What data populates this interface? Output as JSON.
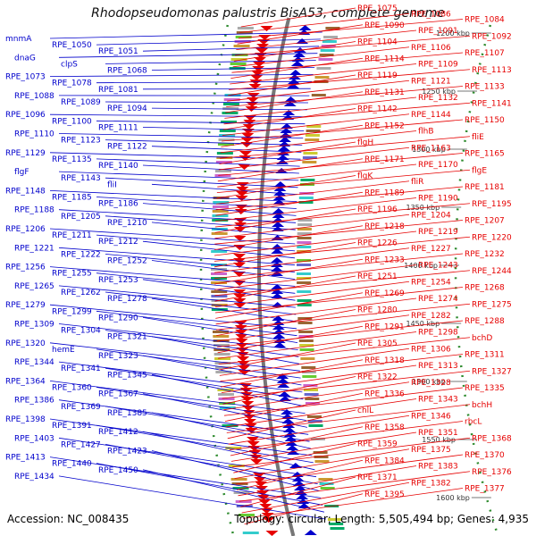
{
  "title": "Rhodopseudomonas palustris BisA53, complete genome",
  "footer": {
    "accession": "Accession: NC_008435",
    "topology": "Topology: circular; Length: 5,505,494 bp; Genes: 4,935"
  },
  "colors": {
    "forward": "#0000cc",
    "reverse": "#e60000",
    "backbone": "#777777",
    "tick": "#2e8b2e"
  },
  "scale_marks": [
    {
      "label": "1200 kbp"
    },
    {
      "label": "1250 kbp"
    },
    {
      "label": "1300 kbp"
    },
    {
      "label": "1350 kbp"
    },
    {
      "label": "1400 kbp"
    },
    {
      "label": "1450 kbp"
    },
    {
      "label": "1500 kbp"
    },
    {
      "label": "1550 kbp"
    },
    {
      "label": "1600 kbp"
    }
  ],
  "left_labels": [
    {
      "text": "mnmA"
    },
    {
      "text": "RPE_1050"
    },
    {
      "text": "RPE_1051"
    },
    {
      "text": "dnaG"
    },
    {
      "text": "clpS"
    },
    {
      "text": "RPE_1068"
    },
    {
      "text": "RPE_1073"
    },
    {
      "text": "RPE_1078"
    },
    {
      "text": "RPE_1081"
    },
    {
      "text": "RPE_1088"
    },
    {
      "text": "RPE_1089"
    },
    {
      "text": "RPE_1094"
    },
    {
      "text": "RPE_1096"
    },
    {
      "text": "RPE_1100"
    },
    {
      "text": "RPE_1111"
    },
    {
      "text": "RPE_1110"
    },
    {
      "text": "RPE_1123"
    },
    {
      "text": "RPE_1122"
    },
    {
      "text": "RPE_1129"
    },
    {
      "text": "RPE_1135"
    },
    {
      "text": "RPE_1140"
    },
    {
      "text": "flgF"
    },
    {
      "text": "RPE_1143"
    },
    {
      "text": "fliI"
    },
    {
      "text": "RPE_1148"
    },
    {
      "text": "RPE_1185"
    },
    {
      "text": "RPE_1186"
    },
    {
      "text": "RPE_1188"
    },
    {
      "text": "RPE_1205"
    },
    {
      "text": "RPE_1210"
    },
    {
      "text": "RPE_1206"
    },
    {
      "text": "RPE_1211"
    },
    {
      "text": "RPE_1212"
    },
    {
      "text": "RPE_1221"
    },
    {
      "text": "RPE_1222"
    },
    {
      "text": "RPE_1252"
    },
    {
      "text": "RPE_1256"
    },
    {
      "text": "RPE_1255"
    },
    {
      "text": "RPE_1253"
    },
    {
      "text": "RPE_1265"
    },
    {
      "text": "RPE_1262"
    },
    {
      "text": "RPE_1278"
    },
    {
      "text": "RPE_1279"
    },
    {
      "text": "RPE_1299"
    },
    {
      "text": "RPE_1290"
    },
    {
      "text": "RPE_1309"
    },
    {
      "text": "RPE_1304"
    },
    {
      "text": "RPE_1321"
    },
    {
      "text": "RPE_1320"
    },
    {
      "text": "hemE"
    },
    {
      "text": "RPE_1323"
    },
    {
      "text": "RPE_1344"
    },
    {
      "text": "RPE_1341"
    },
    {
      "text": "RPE_1345"
    },
    {
      "text": "RPE_1364"
    },
    {
      "text": "RPE_1360"
    },
    {
      "text": "RPE_1367"
    },
    {
      "text": "RPE_1386"
    },
    {
      "text": "RPE_1369"
    },
    {
      "text": "RPE_1385"
    },
    {
      "text": "RPE_1398"
    },
    {
      "text": "RPE_1391"
    },
    {
      "text": "RPE_1412"
    },
    {
      "text": "RPE_1403"
    },
    {
      "text": "RPE_1427"
    },
    {
      "text": "RPE_1423"
    },
    {
      "text": "RPE_1413"
    },
    {
      "text": "RPE_1440"
    },
    {
      "text": "RPE_1450"
    },
    {
      "text": "RPE_1434"
    }
  ],
  "right_labels": [
    {
      "text": "RPE_1075"
    },
    {
      "text": "RPE_1086"
    },
    {
      "text": "RPE_1084"
    },
    {
      "text": "RPE_1090"
    },
    {
      "text": "RPE_1091"
    },
    {
      "text": "RPE_1092"
    },
    {
      "text": "RPE_1104"
    },
    {
      "text": "RPE_1106"
    },
    {
      "text": "RPE_1107"
    },
    {
      "text": "RPE_1114"
    },
    {
      "text": "RPE_1109"
    },
    {
      "text": "RPE_1113"
    },
    {
      "text": "RPE_1119"
    },
    {
      "text": "RPE_1121"
    },
    {
      "text": "RPE_1133"
    },
    {
      "text": "RPE_1131"
    },
    {
      "text": "RPE_1132"
    },
    {
      "text": "RPE_1141"
    },
    {
      "text": "RPE_1142"
    },
    {
      "text": "RPE_1144"
    },
    {
      "text": "RPE_1150"
    },
    {
      "text": "RPE_1152"
    },
    {
      "text": "flhB"
    },
    {
      "text": "fliE"
    },
    {
      "text": "flgH"
    },
    {
      "text": "RPE_1163"
    },
    {
      "text": "RPE_1165"
    },
    {
      "text": "RPE_1171"
    },
    {
      "text": "RPE_1170"
    },
    {
      "text": "flgE"
    },
    {
      "text": "flgK"
    },
    {
      "text": "fliR"
    },
    {
      "text": "RPE_1181"
    },
    {
      "text": "RPE_1189"
    },
    {
      "text": "RPE_1190"
    },
    {
      "text": "RPE_1195"
    },
    {
      "text": "RPE_1196"
    },
    {
      "text": "RPE_1204"
    },
    {
      "text": "RPE_1207"
    },
    {
      "text": "RPE_1218"
    },
    {
      "text": "RPE_1219"
    },
    {
      "text": "RPE_1220"
    },
    {
      "text": "RPE_1226"
    },
    {
      "text": "RPE_1227"
    },
    {
      "text": "RPE_1232"
    },
    {
      "text": "RPE_1233"
    },
    {
      "text": "RPE_1243"
    },
    {
      "text": "RPE_1244"
    },
    {
      "text": "RPE_1251"
    },
    {
      "text": "RPE_1254"
    },
    {
      "text": "RPE_1268"
    },
    {
      "text": "RPE_1269"
    },
    {
      "text": "RPE_1274"
    },
    {
      "text": "RPE_1275"
    },
    {
      "text": "RPE_1280"
    },
    {
      "text": "RPE_1282"
    },
    {
      "text": "RPE_1288"
    },
    {
      "text": "RPE_1291"
    },
    {
      "text": "RPE_1298"
    },
    {
      "text": "bchD"
    },
    {
      "text": "RPE_1305"
    },
    {
      "text": "RPE_1306"
    },
    {
      "text": "RPE_1311"
    },
    {
      "text": "RPE_1318"
    },
    {
      "text": "RPE_1313"
    },
    {
      "text": "RPE_1327"
    },
    {
      "text": "RPE_1322"
    },
    {
      "text": "RPE_1328"
    },
    {
      "text": "RPE_1335"
    },
    {
      "text": "RPE_1336"
    },
    {
      "text": "RPE_1343"
    },
    {
      "text": "bchH"
    },
    {
      "text": "chlL"
    },
    {
      "text": "RPE_1346"
    },
    {
      "text": "rbcL"
    },
    {
      "text": "RPE_1358"
    },
    {
      "text": "RPE_1351"
    },
    {
      "text": "RPE_1368"
    },
    {
      "text": "RPE_1359"
    },
    {
      "text": "RPE_1375"
    },
    {
      "text": "RPE_1370"
    },
    {
      "text": "RPE_1384"
    },
    {
      "text": "RPE_1383"
    },
    {
      "text": "RPE_1376"
    },
    {
      "text": "RPE_1371"
    },
    {
      "text": "RPE_1382"
    },
    {
      "text": "RPE_1377"
    },
    {
      "text": "RPE_1395"
    }
  ]
}
